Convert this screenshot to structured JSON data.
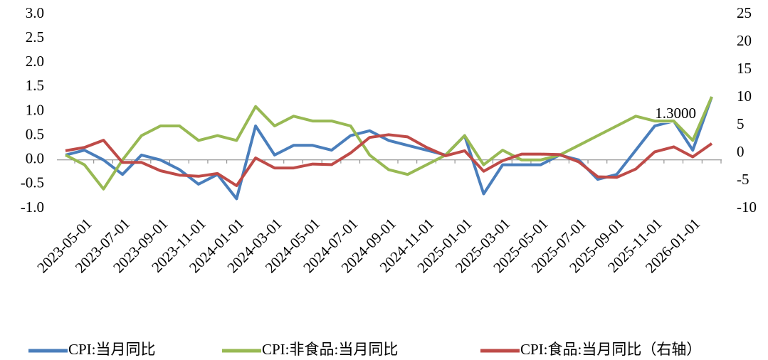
{
  "chart_data": {
    "type": "line",
    "categories": [
      null,
      "2023-05-01",
      null,
      "2023-07-01",
      null,
      "2023-09-01",
      null,
      "2023-11-01",
      null,
      "2024-01-01",
      null,
      "2024-03-01",
      null,
      "2024-05-01",
      null,
      "2024-07-01",
      null,
      "2024-09-01",
      null,
      "2024-11-01",
      null,
      "2025-01-01",
      null,
      "2025-03-01",
      null,
      "2025-05-01",
      null,
      "2025-07-01",
      null,
      "2025-09-01",
      null,
      "2025-11-01",
      null,
      "2026-01-01",
      null
    ],
    "series": [
      {
        "name": "CPI:当月同比",
        "color": "#4a7ebb",
        "values": [
          0.1,
          0.2,
          0.0,
          -0.3,
          0.1,
          0.0,
          -0.2,
          -0.5,
          -0.3,
          -0.8,
          0.7,
          0.1,
          0.3,
          0.3,
          0.2,
          0.5,
          0.6,
          0.4,
          0.3,
          0.2,
          0.1,
          0.5,
          -0.7,
          -0.1,
          -0.1,
          -0.1,
          0.1,
          0.0,
          -0.4,
          -0.3,
          0.2,
          0.7,
          0.8,
          0.2,
          1.3
        ],
        "value_labels": [
          null,
          null,
          null,
          null,
          null,
          null,
          null,
          null,
          null,
          null,
          null,
          null,
          null,
          null,
          null,
          null,
          null,
          null,
          null,
          null,
          null,
          null,
          null,
          null,
          null,
          null,
          null,
          null,
          null,
          null,
          null,
          null,
          null,
          null,
          "1.3000"
        ]
      },
      {
        "name": "CPI:非食品:当月同比",
        "color": "#98b954",
        "values": [
          0.1,
          -0.1,
          -0.6,
          0.0,
          0.5,
          0.7,
          0.7,
          0.4,
          0.5,
          0.4,
          1.1,
          0.7,
          0.9,
          0.8,
          0.8,
          0.7,
          0.1,
          -0.2,
          -0.3,
          -0.1,
          0.1,
          0.5,
          -0.1,
          0.2,
          0.0,
          0.0,
          0.1,
          0.3,
          0.5,
          0.7,
          0.9,
          0.8,
          0.8,
          0.4,
          1.3
        ]
      },
      {
        "name": "CPI:食品:当月同比（右轴）",
        "color": "#be4b48",
        "axis": "y2",
        "values": [
          0.4,
          1.0,
          2.3,
          -1.7,
          -1.7,
          -3.2,
          -4.0,
          -4.2,
          -3.7,
          -5.9,
          -0.9,
          -2.7,
          -2.7,
          -2.0,
          -2.1,
          0.0,
          2.8,
          3.3,
          2.9,
          1.0,
          -0.5,
          0.4,
          -3.3,
          -1.4,
          -0.2,
          -0.2,
          -0.3,
          -1.6,
          -4.3,
          -4.4,
          -2.9,
          0.2,
          1.1,
          -0.7,
          1.7
        ]
      }
    ],
    "ylim": [
      -1,
      3
    ],
    "yticks": [
      {
        "value": -1,
        "label": "-1.0"
      },
      -0.5,
      {
        "value": 0,
        "label": "0.0"
      },
      0.5,
      {
        "value": 1,
        "label": "1.0"
      },
      1.5,
      {
        "value": 2,
        "label": "2.0"
      },
      2.5,
      {
        "value": 3,
        "label": "3.0"
      }
    ],
    "y2lim": [
      -10,
      25
    ],
    "y2ticks": [
      -10,
      -5,
      0,
      5,
      10,
      15,
      20,
      25
    ],
    "grid": false,
    "legend": "bottom"
  }
}
